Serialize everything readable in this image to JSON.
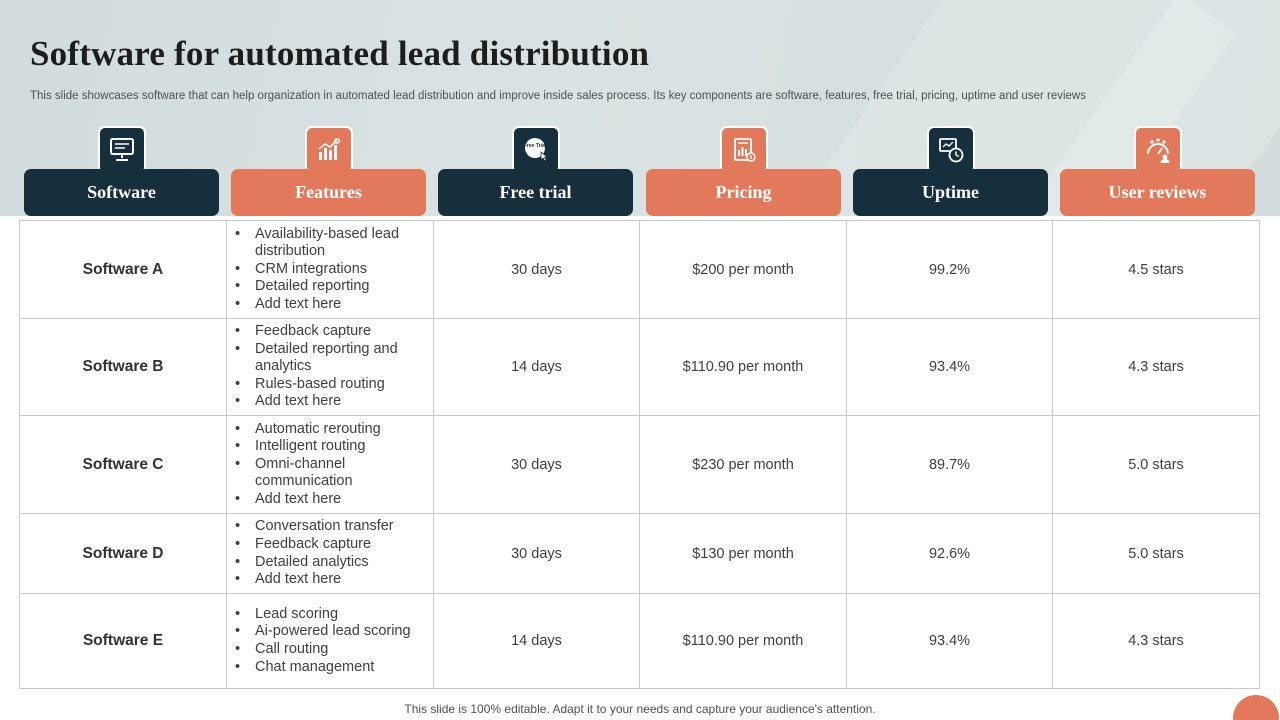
{
  "slide": {
    "title": "Software for automated lead distribution",
    "subtitle": "This slide showcases software that can help organization in automated lead distribution and improve inside sales process. Its key components are software, features, free trial, pricing, uptime and user reviews",
    "footer": "This slide is 100% editable. Adapt it to your needs and capture your audience's attention."
  },
  "columns": [
    {
      "label": "Software",
      "icon": "software-monitor-icon",
      "color": "#15303c"
    },
    {
      "label": "Features",
      "icon": "features-chart-icon",
      "color": "#e2795a"
    },
    {
      "label": "Free trial",
      "icon": "free-trial-icon",
      "free_trial_text": "Free Trial",
      "color": "#15303c"
    },
    {
      "label": "Pricing",
      "icon": "pricing-document-icon",
      "color": "#e2795a"
    },
    {
      "label": "Uptime",
      "icon": "uptime-clock-icon",
      "color": "#15303c"
    },
    {
      "label": "User reviews",
      "icon": "user-reviews-icon",
      "color": "#e2795a"
    }
  ],
  "rows": [
    {
      "software": "Software A",
      "features": [
        "Availability-based lead distribution",
        "CRM integrations",
        "Detailed reporting",
        "Add text here"
      ],
      "free_trial": "30 days",
      "pricing": "$200 per month",
      "uptime": "99.2%",
      "reviews": "4.5 stars"
    },
    {
      "software": "Software B",
      "features": [
        "Feedback capture",
        "Detailed reporting and analytics",
        "Rules-based routing",
        "Add text here"
      ],
      "free_trial": "14 days",
      "pricing": "$110.90 per month",
      "uptime": "93.4%",
      "reviews": "4.3 stars"
    },
    {
      "software": "Software C",
      "features": [
        "Automatic rerouting",
        "Intelligent routing",
        "Omni-channel communication",
        "Add text here"
      ],
      "free_trial": "30 days",
      "pricing": "$230 per month",
      "uptime": "89.7%",
      "reviews": "5.0 stars"
    },
    {
      "software": "Software D",
      "features": [
        "Conversation transfer",
        "Feedback capture",
        "Detailed analytics",
        "Add text here"
      ],
      "free_trial": "30 days",
      "pricing": "$130 per month",
      "uptime": "92.6%",
      "reviews": "5.0 stars"
    },
    {
      "software": "Software E",
      "features": [
        "Lead scoring",
        "Ai-powered lead scoring",
        "Call routing",
        "Chat management"
      ],
      "free_trial": "14 days",
      "pricing": "$110.90 per month",
      "uptime": "93.4%",
      "reviews": "4.3 stars"
    }
  ]
}
